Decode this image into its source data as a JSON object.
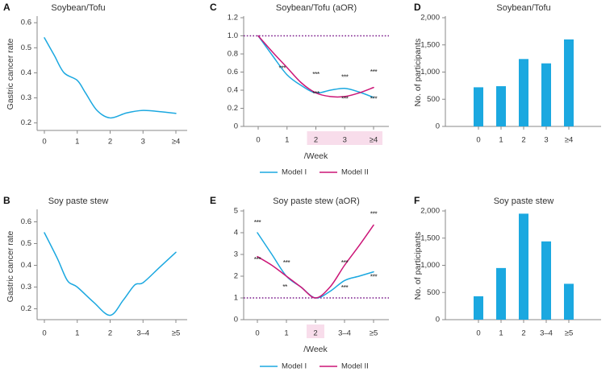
{
  "colors": {
    "blue": "#1BA8E0",
    "magenta": "#CC1577",
    "reference": "#7A1A8A",
    "highlight": "#F8DDEB",
    "axis": "#888888"
  },
  "chart_data": [
    {
      "id": "A",
      "letter": "A",
      "type": "line",
      "title": "Soybean/Tofu",
      "ylabel": "Gastric cancer rate",
      "xlabel": "",
      "categories": [
        "0",
        "1",
        "2",
        "3",
        "≥4"
      ],
      "ylim": [
        0.17,
        0.62
      ],
      "yticks": [
        0.2,
        0.3,
        0.4,
        0.5,
        0.6
      ],
      "ytick_labels": [
        "0.2",
        "0.3",
        "0.4",
        "0.5",
        "0.6"
      ],
      "series": [
        {
          "name": "Gastric cancer rate",
          "color": "blue",
          "values": [
            [
              0,
              0.54
            ],
            [
              0.3,
              0.47
            ],
            [
              0.6,
              0.4
            ],
            [
              1,
              0.37
            ],
            [
              1.25,
              0.32
            ],
            [
              1.6,
              0.25
            ],
            [
              2,
              0.22
            ],
            [
              2.5,
              0.24
            ],
            [
              3,
              0.25
            ],
            [
              3.5,
              0.245
            ],
            [
              4,
              0.238
            ]
          ]
        }
      ]
    },
    {
      "id": "C",
      "letter": "C",
      "type": "line",
      "title": "Soybean/Tofu (aOR)",
      "ylabel": "",
      "xlabel": "/Week",
      "categories": [
        "0",
        "1",
        "2",
        "3",
        "≥4"
      ],
      "highlight_categories": [
        2,
        4
      ],
      "ylim": [
        0,
        1.2
      ],
      "yticks": [
        0,
        0.2,
        0.4,
        0.6,
        0.8,
        1.0,
        1.2
      ],
      "ytick_labels": [
        "0",
        "0.2",
        "0.4",
        "0.6",
        "0.8",
        "1.0",
        "1.2"
      ],
      "reference_line": 1.0,
      "series": [
        {
          "name": "Model I",
          "color": "blue",
          "values": [
            [
              0,
              1.0
            ],
            [
              0.5,
              0.78
            ],
            [
              1,
              0.57
            ],
            [
              1.5,
              0.45
            ],
            [
              2,
              0.37
            ],
            [
              2.5,
              0.4
            ],
            [
              3,
              0.42
            ],
            [
              3.5,
              0.38
            ],
            [
              4,
              0.32
            ]
          ]
        },
        {
          "name": "Model II",
          "color": "magenta",
          "values": [
            [
              0,
              1.0
            ],
            [
              0.5,
              0.82
            ],
            [
              1,
              0.65
            ],
            [
              1.5,
              0.48
            ],
            [
              2,
              0.37
            ],
            [
              2.5,
              0.33
            ],
            [
              3,
              0.33
            ],
            [
              3.5,
              0.37
            ],
            [
              4,
              0.43
            ]
          ]
        }
      ],
      "significance": [
        {
          "x": 1,
          "y": 0.64,
          "label": "***",
          "dx": -6
        },
        {
          "x": 2,
          "y": 0.57,
          "label": "***",
          "dx": 0
        },
        {
          "x": 2,
          "y": 0.36,
          "label": "***",
          "dx": 0
        },
        {
          "x": 3,
          "y": 0.54,
          "label": "***",
          "dx": 0
        },
        {
          "x": 3,
          "y": 0.3,
          "label": "***",
          "dx": 0
        },
        {
          "x": 4,
          "y": 0.6,
          "label": "***",
          "dx": 0
        },
        {
          "x": 4,
          "y": 0.3,
          "label": "***",
          "dx": 0
        }
      ],
      "legend": [
        "Model I",
        "Model II"
      ]
    },
    {
      "id": "D",
      "letter": "D",
      "type": "bar",
      "title": "Soybean/Tofu",
      "ylabel": "No. of participants",
      "xlabel": "",
      "categories": [
        "0",
        "1",
        "2",
        "3",
        "≥4"
      ],
      "values": [
        720,
        740,
        1240,
        1160,
        1600
      ],
      "ylim": [
        0,
        2000
      ],
      "yticks": [
        0,
        500,
        1000,
        1500,
        2000
      ],
      "ytick_labels": [
        "0",
        "500",
        "1,000",
        "1,500",
        "2,000"
      ],
      "color": "blue"
    },
    {
      "id": "B",
      "letter": "B",
      "type": "line",
      "title": "Soy paste stew",
      "ylabel": "Gastric cancer rate",
      "xlabel": "",
      "categories": [
        "0",
        "1",
        "2",
        "3–4",
        "≥5"
      ],
      "ylim": [
        0.15,
        0.65
      ],
      "yticks": [
        0.2,
        0.3,
        0.4,
        0.5,
        0.6
      ],
      "ytick_labels": [
        "0.2",
        "0.3",
        "0.4",
        "0.5",
        "0.6"
      ],
      "series": [
        {
          "name": "Gastric cancer rate",
          "color": "blue",
          "values": [
            [
              0,
              0.55
            ],
            [
              0.4,
              0.43
            ],
            [
              0.7,
              0.33
            ],
            [
              1,
              0.3
            ],
            [
              1.5,
              0.23
            ],
            [
              2,
              0.17
            ],
            [
              2.4,
              0.24
            ],
            [
              2.75,
              0.31
            ],
            [
              3,
              0.32
            ],
            [
              3.5,
              0.39
            ],
            [
              4,
              0.46
            ]
          ]
        }
      ]
    },
    {
      "id": "E",
      "letter": "E",
      "type": "line",
      "title": "Soy paste stew (aOR)",
      "ylabel": "",
      "xlabel": "/Week",
      "categories": [
        "0",
        "1",
        "2",
        "3–4",
        "≥5"
      ],
      "highlight_categories": [
        2,
        2
      ],
      "ylim": [
        0,
        5
      ],
      "yticks": [
        0,
        1,
        2,
        3,
        4,
        5
      ],
      "ytick_labels": [
        "0",
        "1",
        "2",
        "3",
        "4",
        "5"
      ],
      "reference_line": 1.0,
      "series": [
        {
          "name": "Model I",
          "color": "blue",
          "values": [
            [
              0,
              4.0
            ],
            [
              0.5,
              3.0
            ],
            [
              1,
              2.0
            ],
            [
              1.5,
              1.5
            ],
            [
              2,
              1.0
            ],
            [
              2.5,
              1.3
            ],
            [
              3,
              1.8
            ],
            [
              3.5,
              2.0
            ],
            [
              4,
              2.2
            ]
          ]
        },
        {
          "name": "Model II",
          "color": "magenta",
          "values": [
            [
              0,
              2.9
            ],
            [
              0.5,
              2.5
            ],
            [
              1,
              2.0
            ],
            [
              1.5,
              1.5
            ],
            [
              2,
              1.0
            ],
            [
              2.5,
              1.5
            ],
            [
              3,
              2.5
            ],
            [
              3.5,
              3.4
            ],
            [
              4,
              4.35
            ]
          ]
        }
      ],
      "significance": [
        {
          "x": 0,
          "y": 4.45,
          "label": "***",
          "dx": 0
        },
        {
          "x": 0,
          "y": 2.75,
          "label": "***",
          "dx": 0
        },
        {
          "x": 1,
          "y": 2.6,
          "label": "***",
          "dx": 0
        },
        {
          "x": 1,
          "y": 1.5,
          "label": "**",
          "dx": -2
        },
        {
          "x": 3,
          "y": 2.6,
          "label": "***",
          "dx": 0
        },
        {
          "x": 3,
          "y": 1.45,
          "label": "***",
          "dx": 0
        },
        {
          "x": 4,
          "y": 4.85,
          "label": "***",
          "dx": 0
        },
        {
          "x": 4,
          "y": 1.95,
          "label": "***",
          "dx": 0
        }
      ],
      "legend": [
        "Model I",
        "Model II"
      ]
    },
    {
      "id": "F",
      "letter": "F",
      "type": "bar",
      "title": "Soy paste stew",
      "ylabel": "No. of participants",
      "xlabel": "",
      "categories": [
        "0",
        "1",
        "2",
        "3–4",
        "≥5"
      ],
      "values": [
        430,
        950,
        1950,
        1440,
        660
      ],
      "ylim": [
        0,
        2000
      ],
      "yticks": [
        0,
        500,
        1000,
        1500,
        2000
      ],
      "ytick_labels": [
        "0",
        "500",
        "1,000",
        "1,500",
        "2,000"
      ],
      "color": "blue"
    }
  ]
}
